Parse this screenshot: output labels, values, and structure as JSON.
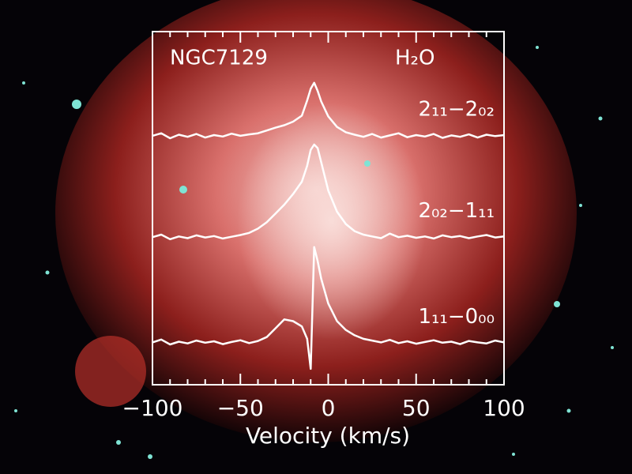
{
  "chart_data": {
    "type": "line",
    "title": "NGC7129",
    "annotation": "H₂O",
    "xlabel": "Velocity (km/s)",
    "xlim": [
      -100,
      100
    ],
    "xticks": [
      {
        "value": -100,
        "label": "−100"
      },
      {
        "value": -50,
        "label": "−50"
      },
      0,
      50,
      100
    ],
    "xminorticks": [
      -90,
      -80,
      -70,
      -60,
      -40,
      -30,
      -20,
      -10,
      10,
      20,
      30,
      40,
      60,
      70,
      80,
      90
    ],
    "ylim": [
      0,
      10
    ],
    "x": [
      -100,
      -95,
      -90,
      -85,
      -80,
      -75,
      -70,
      -65,
      -60,
      -55,
      -50,
      -45,
      -40,
      -35,
      -30,
      -25,
      -20,
      -15,
      -12,
      -10,
      -8,
      -6,
      -4,
      0,
      5,
      10,
      15,
      20,
      25,
      30,
      35,
      40,
      45,
      50,
      55,
      60,
      65,
      70,
      75,
      80,
      85,
      90,
      95,
      100
    ],
    "series": [
      {
        "name": "2₁₁−2₀₂",
        "color": "#ffffff",
        "values": [
          7.05,
          7.12,
          6.98,
          7.08,
          7.02,
          7.1,
          7.0,
          7.07,
          7.03,
          7.11,
          7.05,
          7.09,
          7.12,
          7.2,
          7.28,
          7.35,
          7.45,
          7.62,
          8.05,
          8.38,
          8.55,
          8.32,
          8.02,
          7.6,
          7.3,
          7.15,
          7.08,
          7.02,
          7.1,
          7.0,
          7.06,
          7.12,
          7.01,
          7.07,
          7.03,
          7.1,
          6.99,
          7.06,
          7.02,
          7.09,
          7.0,
          7.08,
          7.04,
          7.07
        ]
      },
      {
        "name": "2₀₂−1₁₁",
        "color": "#ffffff",
        "values": [
          4.18,
          4.25,
          4.12,
          4.2,
          4.15,
          4.23,
          4.17,
          4.21,
          4.14,
          4.19,
          4.24,
          4.3,
          4.42,
          4.6,
          4.85,
          5.1,
          5.4,
          5.75,
          6.2,
          6.65,
          6.8,
          6.7,
          6.3,
          5.5,
          4.9,
          4.55,
          4.35,
          4.25,
          4.2,
          4.15,
          4.28,
          4.18,
          4.22,
          4.16,
          4.2,
          4.14,
          4.23,
          4.18,
          4.21,
          4.15,
          4.2,
          4.24,
          4.17,
          4.2
        ]
      },
      {
        "name": "1₁₁−0₀₀",
        "color": "#ffffff",
        "values": [
          1.2,
          1.28,
          1.14,
          1.22,
          1.17,
          1.25,
          1.19,
          1.23,
          1.15,
          1.21,
          1.26,
          1.18,
          1.24,
          1.35,
          1.6,
          1.85,
          1.8,
          1.65,
          1.3,
          0.45,
          3.9,
          3.5,
          3.0,
          2.3,
          1.8,
          1.55,
          1.4,
          1.3,
          1.25,
          1.2,
          1.27,
          1.18,
          1.23,
          1.16,
          1.21,
          1.26,
          1.19,
          1.22,
          1.15,
          1.24,
          1.2,
          1.17,
          1.25,
          1.2
        ]
      }
    ]
  }
}
